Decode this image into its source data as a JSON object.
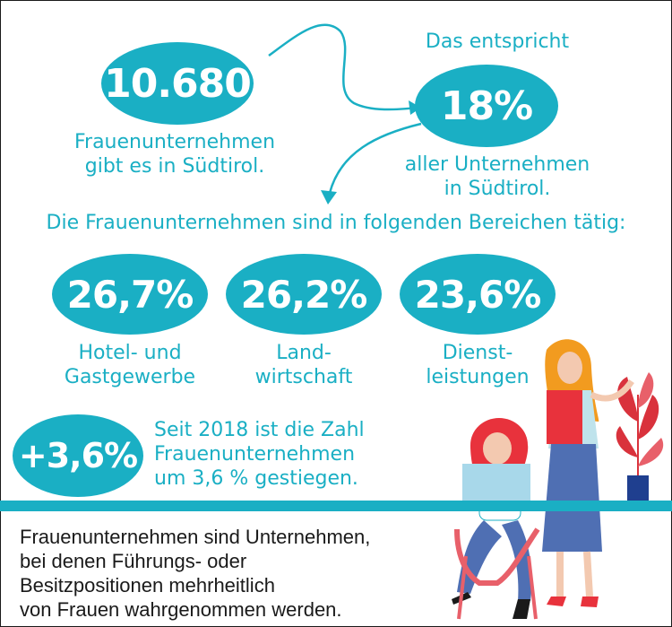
{
  "top_left": {
    "value": "10.680",
    "caption_line1": "Frauenunternehmen",
    "caption_line2": "gibt es in Südtirol."
  },
  "top_right": {
    "intro": "Das entspricht",
    "value": "18%",
    "caption_line1": "aller Unternehmen",
    "caption_line2": "in Südtirol."
  },
  "sectors_heading": "Die Frauenunternehmen sind in folgenden Bereichen tätig:",
  "sectors": [
    {
      "value": "26,7%",
      "line1": "Hotel- und",
      "line2": "Gastgewerbe"
    },
    {
      "value": "26,2%",
      "line1": "Land-",
      "line2": "wirtschaft"
    },
    {
      "value": "23,6%",
      "line1": "Dienst-",
      "line2": "leistungen"
    }
  ],
  "growth": {
    "value": "+3,6%",
    "line1": "Seit 2018 ist die Zahl",
    "line2": "Frauenunternehmen",
    "line3": "um 3,6 % gestiegen."
  },
  "definition": {
    "line1": "Frauenunternehmen sind Unternehmen,",
    "line2": "bei denen Führungs- oder",
    "line3": "Besitzpositionen mehrheitlich",
    "line4": "von Frauen wahrgenommen werden."
  },
  "colors": {
    "accent": "#1aafc4",
    "woman_hair": "#e8323c",
    "skirt": "#4f6fb3",
    "plant": "#d9323c"
  }
}
